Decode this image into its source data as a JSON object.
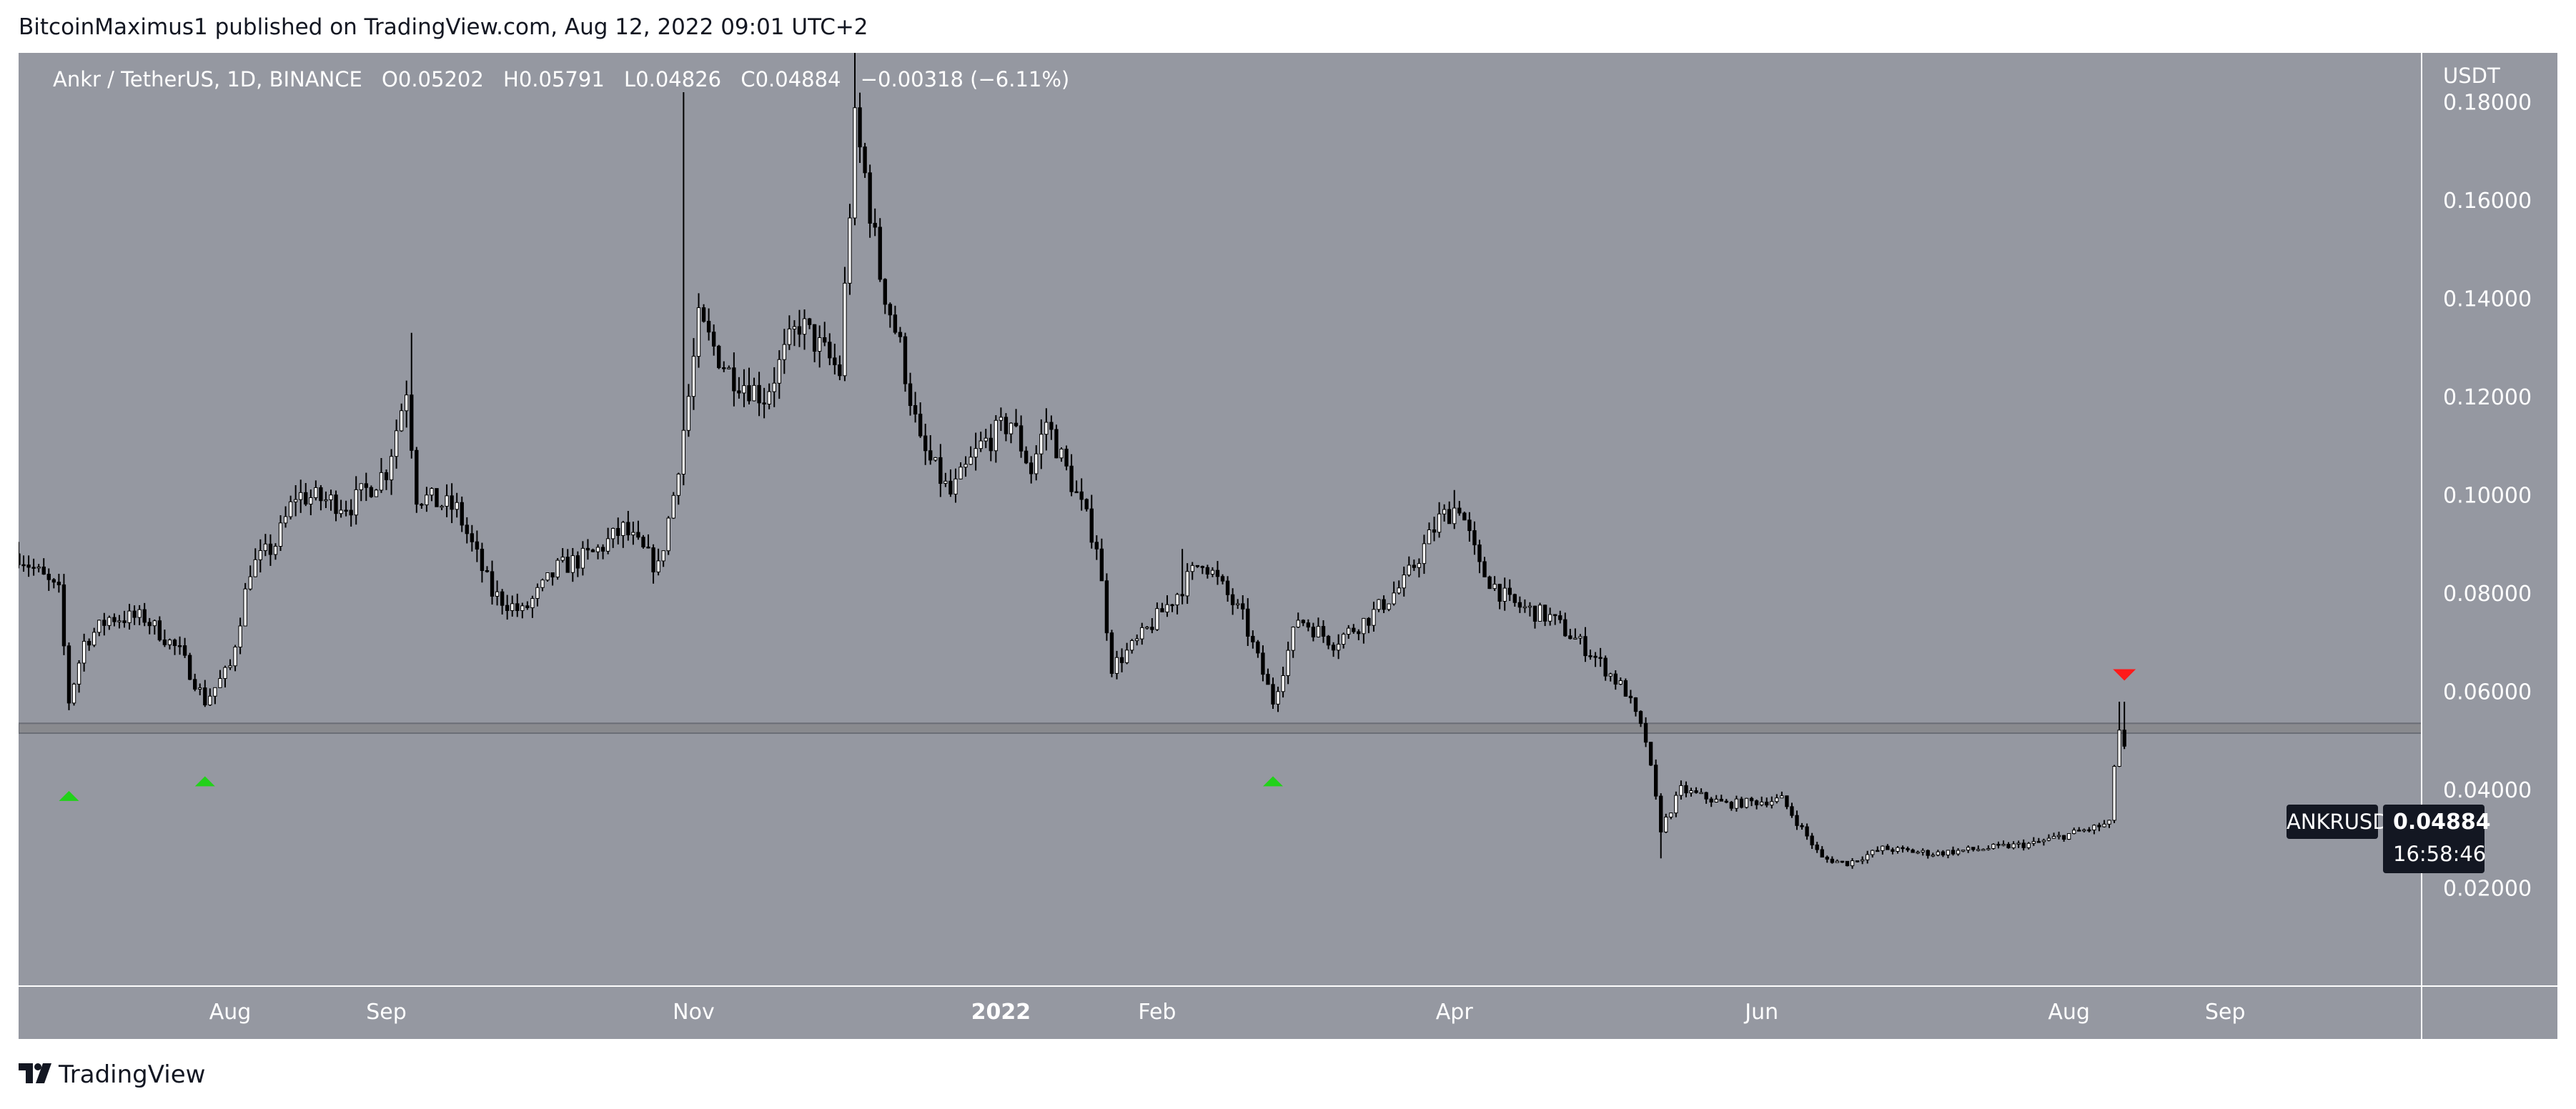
{
  "header": {
    "credit": "BitcoinMaximus1 published on TradingView.com, Aug 12, 2022 09:01 UTC+2"
  },
  "legend": {
    "symbol": "Ankr / TetherUS, 1D, BINANCE",
    "o_label": "O",
    "o_value": "0.05202",
    "h_label": "H",
    "h_value": "0.05791",
    "l_label": "L",
    "l_value": "0.04826",
    "c_label": "C",
    "c_value": "0.04884",
    "change": "−0.00318 (−6.11%)"
  },
  "price_badge": {
    "ticker": "ANKRUSDT",
    "price": "0.04884",
    "countdown": "16:58:46"
  },
  "footer": {
    "brand": "TradingView"
  },
  "colors": {
    "background": "#9598a1",
    "candle_up": "#ffffff",
    "candle_down": "#000000",
    "support_band": "#808080",
    "marker_up": "#22d11a",
    "marker_down": "#ff1a1a"
  },
  "chart_data": {
    "type": "candlestick",
    "title": "Ankr / TetherUS, 1D, BINANCE",
    "y_axis_unit": "USDT",
    "y_ticks": [
      "0.02000",
      "0.04000",
      "0.06000",
      "0.08000",
      "0.10000",
      "0.12000",
      "0.14000",
      "0.16000",
      "0.18000"
    ],
    "y_range": [
      0.0,
      0.19
    ],
    "x_ticks": [
      {
        "label": "Aug",
        "date": "2021-08-01"
      },
      {
        "label": "Sep",
        "date": "2021-09-01"
      },
      {
        "label": "Nov",
        "date": "2021-11-01"
      },
      {
        "label": "2022",
        "date": "2022-01-01"
      },
      {
        "label": "Feb",
        "date": "2022-02-01"
      },
      {
        "label": "Apr",
        "date": "2022-04-01"
      },
      {
        "label": "Jun",
        "date": "2022-06-01"
      },
      {
        "label": "Aug",
        "date": "2022-08-01"
      },
      {
        "label": "Sep",
        "date": "2022-09-01"
      }
    ],
    "x_range": [
      "2021-06-20",
      "2022-10-10"
    ],
    "support_band": {
      "low": 0.0515,
      "high": 0.0535
    },
    "markers": [
      {
        "date": "2021-06-30",
        "price": 0.047,
        "direction": "up"
      },
      {
        "date": "2021-07-27",
        "price": 0.05,
        "direction": "up"
      },
      {
        "date": "2022-02-24",
        "price": 0.05,
        "direction": "up"
      },
      {
        "date": "2022-08-12",
        "price": 0.059,
        "direction": "down"
      }
    ],
    "price_path": [
      [
        "2021-06-20",
        0.088
      ],
      [
        "2021-06-28",
        0.08
      ],
      [
        "2021-06-30",
        0.058
      ],
      [
        "2021-07-03",
        0.07
      ],
      [
        "2021-07-08",
        0.075
      ],
      [
        "2021-07-15",
        0.075
      ],
      [
        "2021-07-22",
        0.068
      ],
      [
        "2021-07-27",
        0.058
      ],
      [
        "2021-08-01",
        0.065
      ],
      [
        "2021-08-05",
        0.085
      ],
      [
        "2021-08-10",
        0.09
      ],
      [
        "2021-08-14",
        0.1
      ],
      [
        "2021-08-25",
        0.098
      ],
      [
        "2021-09-01",
        0.105
      ],
      [
        "2021-09-05",
        0.122
      ],
      [
        "2021-09-07",
        0.1
      ],
      [
        "2021-09-15",
        0.097
      ],
      [
        "2021-09-22",
        0.08
      ],
      [
        "2021-09-28",
        0.076
      ],
      [
        "2021-10-05",
        0.085
      ],
      [
        "2021-10-12",
        0.088
      ],
      [
        "2021-10-18",
        0.093
      ],
      [
        "2021-10-25",
        0.085
      ],
      [
        "2021-10-28",
        0.1
      ],
      [
        "2021-10-31",
        0.12
      ],
      [
        "2021-11-02",
        0.135
      ],
      [
        "2021-11-08",
        0.125
      ],
      [
        "2021-11-15",
        0.12
      ],
      [
        "2021-11-22",
        0.135
      ],
      [
        "2021-11-26",
        0.13
      ],
      [
        "2021-11-30",
        0.125
      ],
      [
        "2021-12-03",
        0.175
      ],
      [
        "2021-12-05",
        0.165
      ],
      [
        "2021-12-08",
        0.145
      ],
      [
        "2021-12-12",
        0.13
      ],
      [
        "2021-12-16",
        0.11
      ],
      [
        "2021-12-22",
        0.1
      ],
      [
        "2021-12-28",
        0.11
      ],
      [
        "2022-01-03",
        0.115
      ],
      [
        "2022-01-07",
        0.105
      ],
      [
        "2022-01-10",
        0.115
      ],
      [
        "2022-01-14",
        0.105
      ],
      [
        "2022-01-20",
        0.09
      ],
      [
        "2022-01-23",
        0.065
      ],
      [
        "2022-01-28",
        0.07
      ],
      [
        "2022-02-05",
        0.08
      ],
      [
        "2022-02-10",
        0.087
      ],
      [
        "2022-02-18",
        0.075
      ],
      [
        "2022-02-24",
        0.058
      ],
      [
        "2022-03-01",
        0.075
      ],
      [
        "2022-03-08",
        0.07
      ],
      [
        "2022-03-15",
        0.075
      ],
      [
        "2022-03-22",
        0.082
      ],
      [
        "2022-03-29",
        0.095
      ],
      [
        "2022-04-02",
        0.098
      ],
      [
        "2022-04-06",
        0.085
      ],
      [
        "2022-04-12",
        0.078
      ],
      [
        "2022-04-20",
        0.075
      ],
      [
        "2022-04-28",
        0.068
      ],
      [
        "2022-05-05",
        0.06
      ],
      [
        "2022-05-09",
        0.05
      ],
      [
        "2022-05-12",
        0.032
      ],
      [
        "2022-05-16",
        0.04
      ],
      [
        "2022-05-25",
        0.037
      ],
      [
        "2022-06-05",
        0.038
      ],
      [
        "2022-06-13",
        0.026
      ],
      [
        "2022-06-18",
        0.025
      ],
      [
        "2022-06-25",
        0.028
      ],
      [
        "2022-07-05",
        0.027
      ],
      [
        "2022-07-15",
        0.028
      ],
      [
        "2022-07-25",
        0.029
      ],
      [
        "2022-08-05",
        0.032
      ],
      [
        "2022-08-09",
        0.033
      ],
      [
        "2022-08-10",
        0.045
      ],
      [
        "2022-08-11",
        0.05202
      ],
      [
        "2022-08-12",
        0.04884
      ]
    ],
    "price_extremes": [
      [
        "2021-09-06",
        0.133
      ],
      [
        "2021-10-30",
        0.182
      ],
      [
        "2021-12-03",
        0.19
      ],
      [
        "2022-02-06",
        0.089
      ],
      [
        "2022-04-01",
        0.101
      ],
      [
        "2022-05-12",
        0.026
      ],
      [
        "2022-08-11",
        0.05791
      ]
    ],
    "last_price": 0.04884
  }
}
